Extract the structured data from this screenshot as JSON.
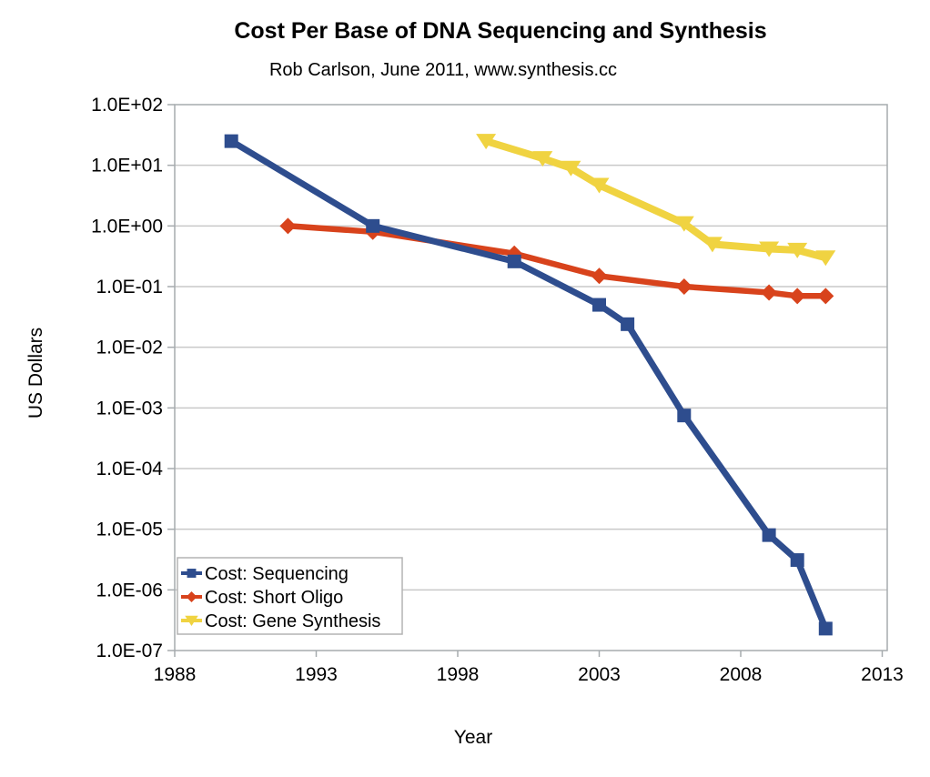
{
  "chart_data": {
    "type": "line",
    "title": "Cost Per Base of DNA Sequencing and Synthesis",
    "subtitle": "Rob Carlson, June 2011, www.synthesis.cc",
    "xlabel": "Year",
    "ylabel": "US Dollars",
    "xlim": [
      1988,
      2013
    ],
    "ylim": [
      1e-07,
      100
    ],
    "y_scale": "log",
    "grid": "horizontal",
    "legend_position": "bottom-left-inside",
    "x_ticks": [
      1988,
      1993,
      1998,
      2003,
      2008,
      2013
    ],
    "y_tick_labels": [
      "1.0E+02",
      "1.0E+01",
      "1.0E+00",
      "1.0E-01",
      "1.0E-02",
      "1.0E-03",
      "1.0E-04",
      "1.0E-05",
      "1.0E-06",
      "1.0E-07"
    ],
    "colors": {
      "sequencing": "#2E4D8E",
      "short_oligo": "#D8431C",
      "gene_synthesis": "#F0D341",
      "gridline": "#C9C9C9",
      "frame": "#A6ABAE"
    },
    "series": [
      {
        "name": "Cost: Sequencing",
        "color": "#2E4D8E",
        "marker": "square",
        "line_width": 7,
        "points": [
          [
            1990,
            25
          ],
          [
            1995,
            1.0
          ],
          [
            2000,
            0.26
          ],
          [
            2003,
            0.05
          ],
          [
            2004,
            0.024
          ],
          [
            2006,
            0.00075
          ],
          [
            2009,
            8e-06
          ],
          [
            2010,
            3.1e-06
          ],
          [
            2011,
            2.3e-07
          ]
        ]
      },
      {
        "name": "Cost: Short Oligo",
        "color": "#D8431C",
        "marker": "diamond",
        "line_width": 6.5,
        "points": [
          [
            1992,
            1.0
          ],
          [
            1995,
            0.8
          ],
          [
            2000,
            0.35
          ],
          [
            2003,
            0.15
          ],
          [
            2006,
            0.1
          ],
          [
            2009,
            0.08
          ],
          [
            2010,
            0.07
          ],
          [
            2011,
            0.07
          ]
        ]
      },
      {
        "name": "Cost: Gene Synthesis",
        "color": "#F0D341",
        "marker": "triangle-down",
        "line_width": 8,
        "points": [
          [
            1999,
            25
          ],
          [
            2001,
            13
          ],
          [
            2002,
            9
          ],
          [
            2003,
            4.7
          ],
          [
            2006,
            1.1
          ],
          [
            2007,
            0.5
          ],
          [
            2009,
            0.42
          ],
          [
            2010,
            0.4
          ],
          [
            2011,
            0.3
          ]
        ]
      }
    ]
  }
}
